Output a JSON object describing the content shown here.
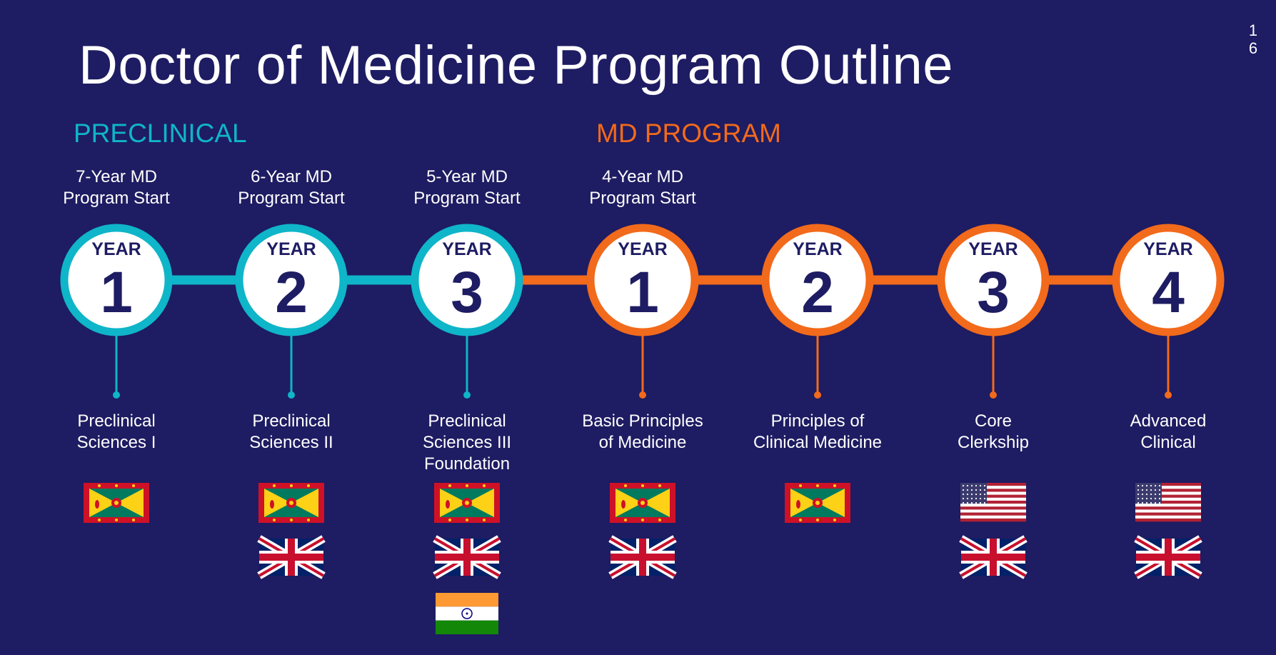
{
  "page": {
    "title": "Doctor of Medicine Program Outline",
    "page_number": "1\n6"
  },
  "sections": {
    "preclinical": {
      "label": "PRECLINICAL",
      "color": "#0fb5c8"
    },
    "md_program": {
      "label": "MD PROGRAM",
      "color": "#f26a1b"
    }
  },
  "background_color": "#1e1c62",
  "years": [
    {
      "year_label": "YEAR",
      "year_number": "1",
      "section": "preclinical",
      "milestone": "7-Year MD\nProgram Start",
      "course": "Preclinical\nSciences I",
      "flags": [
        "grenada"
      ]
    },
    {
      "year_label": "YEAR",
      "year_number": "2",
      "section": "preclinical",
      "milestone": "6-Year MD\nProgram Start",
      "course": "Preclinical\nSciences II",
      "flags": [
        "grenada",
        "uk"
      ]
    },
    {
      "year_label": "YEAR",
      "year_number": "3",
      "section": "preclinical",
      "milestone": "5-Year MD\nProgram Start",
      "course": "Preclinical\nSciences III\nFoundation",
      "flags": [
        "grenada",
        "uk",
        "india"
      ]
    },
    {
      "year_label": "YEAR",
      "year_number": "1",
      "section": "md_program",
      "milestone": "4-Year MD\nProgram Start",
      "course": "Basic Principles\nof Medicine",
      "flags": [
        "grenada",
        "uk"
      ]
    },
    {
      "year_label": "YEAR",
      "year_number": "2",
      "section": "md_program",
      "milestone": "",
      "course": "Principles of\nClinical Medicine",
      "flags": [
        "grenada"
      ]
    },
    {
      "year_label": "YEAR",
      "year_number": "3",
      "section": "md_program",
      "milestone": "",
      "course": "Core\nClerkship",
      "flags": [
        "usa",
        "uk"
      ]
    },
    {
      "year_label": "YEAR",
      "year_number": "4",
      "section": "md_program",
      "milestone": "",
      "course": "Advanced\nClinical",
      "flags": [
        "usa",
        "uk"
      ]
    }
  ]
}
